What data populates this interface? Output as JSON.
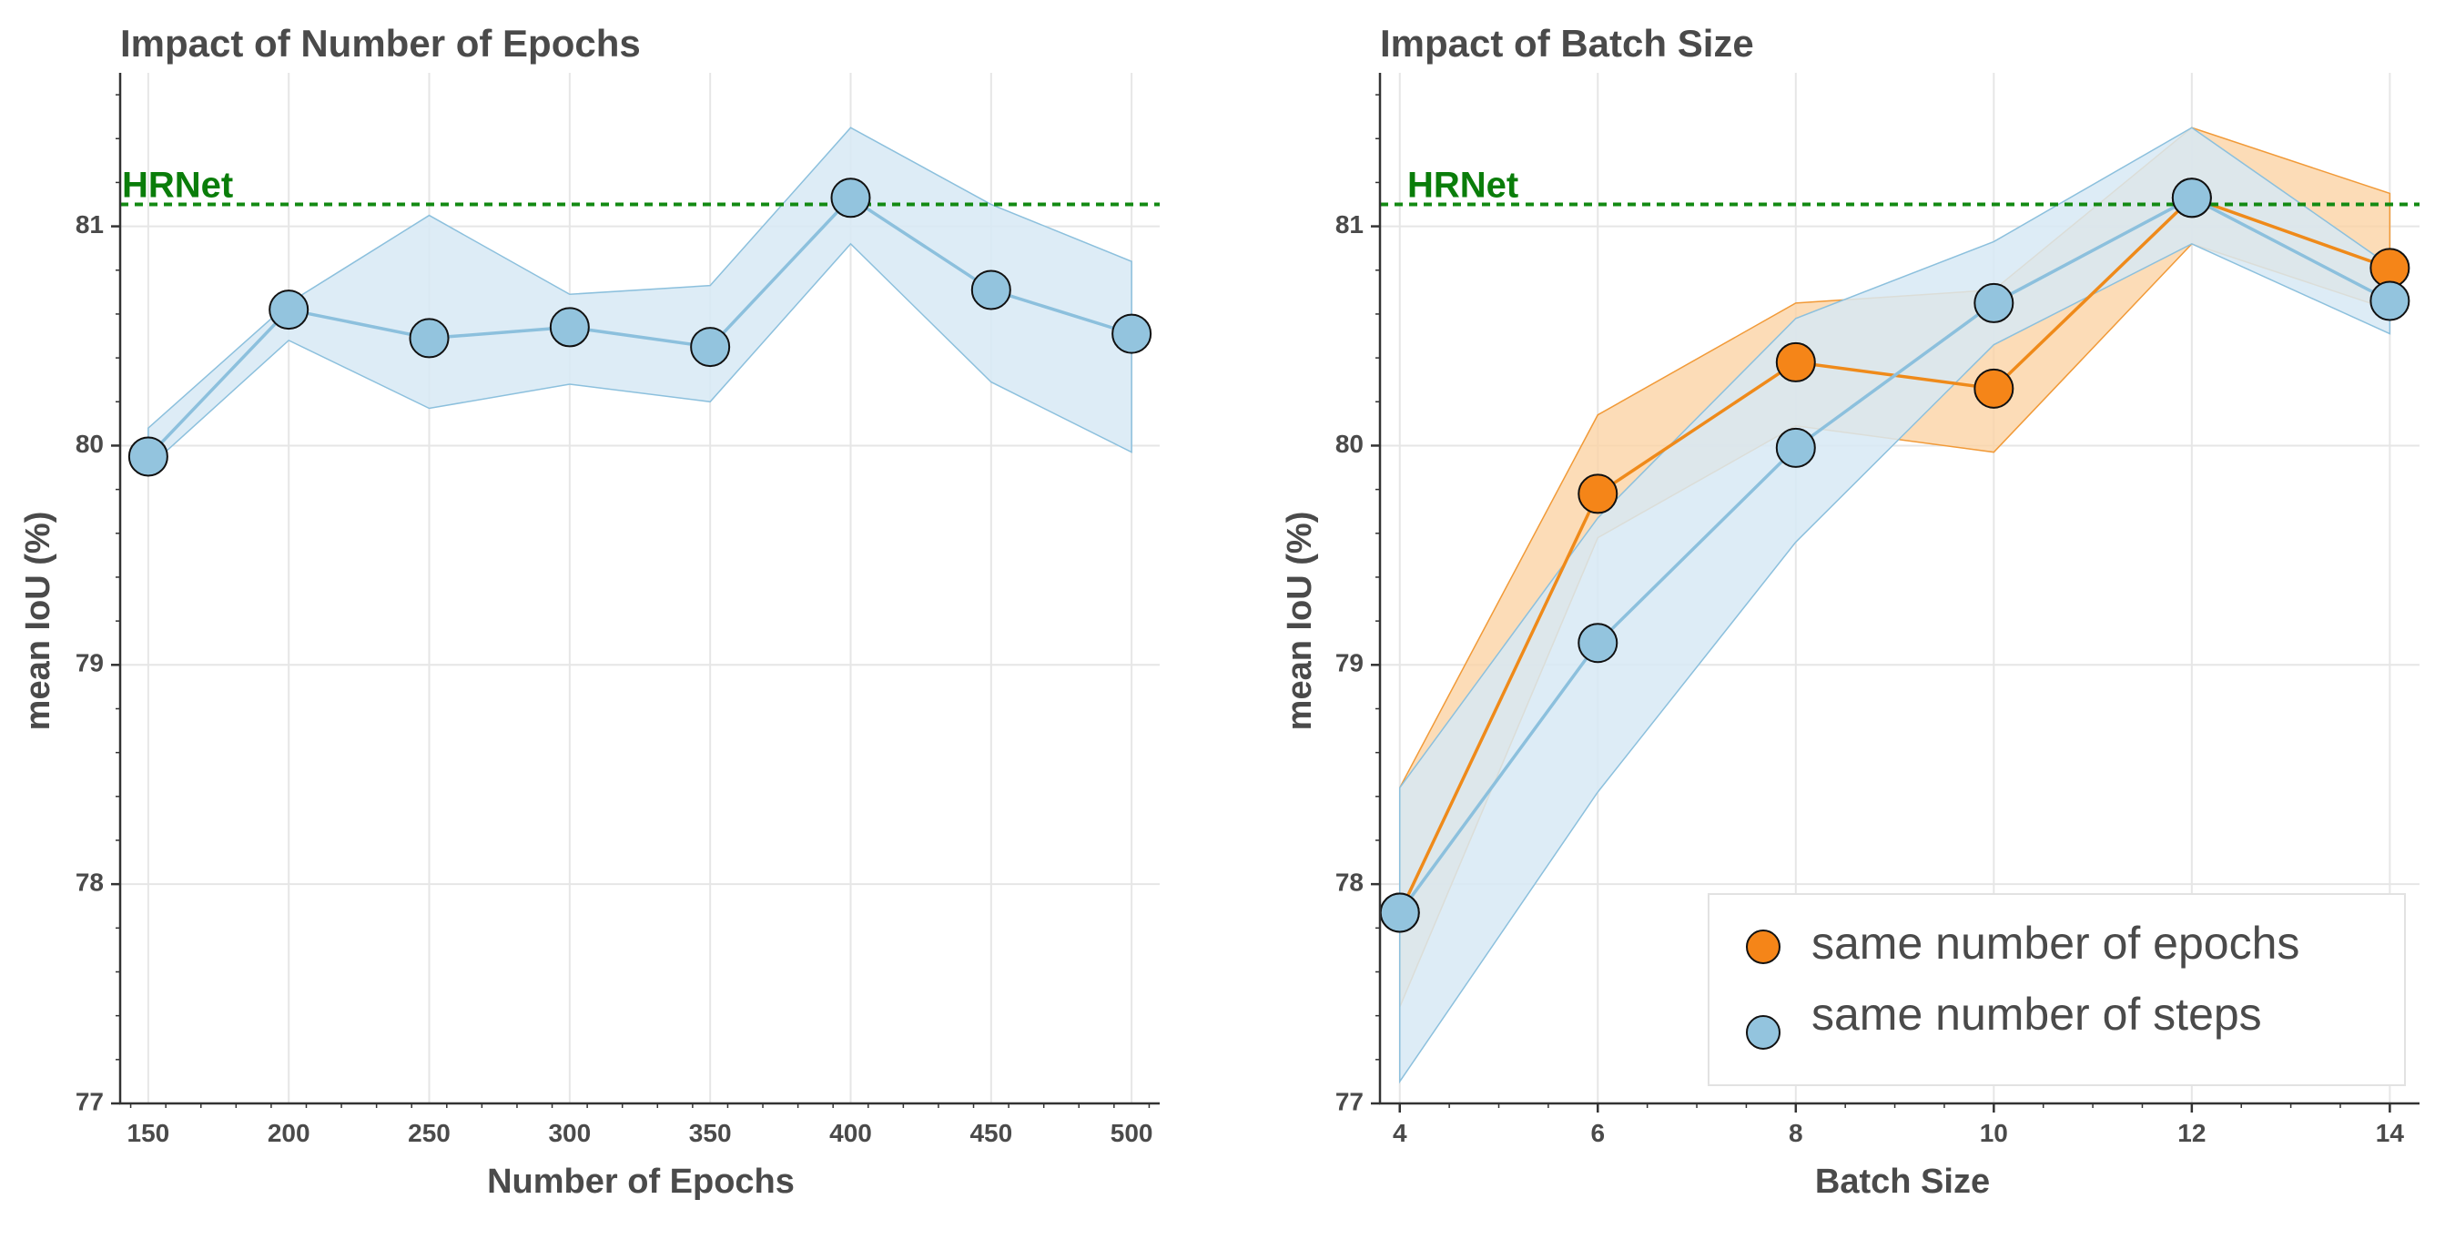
{
  "colors": {
    "blue": "#93c4de",
    "blue_line": "#8cc0dd",
    "blue_band": "#d7e9f4",
    "blue_band_edge": "#8cc0dd",
    "orange": "#f58518",
    "orange_line": "#ef8a1a",
    "orange_band": "#fbd2a3",
    "orange_band_edge": "#f19a38",
    "reference": "#138a13",
    "grid": "#e6e6e6",
    "axis": "#333333",
    "marker_edge": "#111111"
  },
  "chart_data": [
    {
      "type": "line",
      "title": "Impact of Number of Epochs",
      "xlabel": "Number of Epochs",
      "ylabel": "mean IoU (%)",
      "xlim": [
        140,
        510
      ],
      "ylim": [
        77,
        81.7
      ],
      "xticks": [
        150,
        200,
        250,
        300,
        350,
        400,
        450,
        500
      ],
      "xtick_labels": [
        "150",
        "200",
        "250",
        "300",
        "350",
        "400",
        "450",
        "500"
      ],
      "yticks": [
        77,
        78,
        79,
        80,
        81
      ],
      "ytick_labels": [
        "77",
        "78",
        "79",
        "80",
        "81"
      ],
      "grid": true,
      "reference_line": {
        "label": "HRNet",
        "y": 81.1
      },
      "series": [
        {
          "color": "blue",
          "x": [
            150,
            200,
            250,
            300,
            350,
            400,
            450,
            500
          ],
          "values": [
            79.95,
            80.62,
            80.49,
            80.54,
            80.45,
            81.13,
            80.71,
            80.51
          ],
          "lower": [
            79.9,
            80.48,
            80.17,
            80.28,
            80.2,
            80.92,
            80.29,
            79.97
          ],
          "upper": [
            80.08,
            80.65,
            81.05,
            80.69,
            80.73,
            81.45,
            81.1,
            80.84
          ]
        }
      ]
    },
    {
      "type": "line",
      "title": "Impact of Batch Size",
      "xlabel": "Batch Size",
      "ylabel": "mean IoU (%)",
      "xlim": [
        3.8,
        14.3
      ],
      "ylim": [
        77,
        81.7
      ],
      "xticks": [
        4,
        6,
        8,
        10,
        12,
        14
      ],
      "xtick_labels": [
        "4",
        "6",
        "8",
        "10",
        "12",
        "14"
      ],
      "yticks": [
        77,
        78,
        79,
        80,
        81
      ],
      "ytick_labels": [
        "77",
        "78",
        "79",
        "80",
        "81"
      ],
      "grid": true,
      "legend_position": "lower-right",
      "reference_line": {
        "label": "HRNet",
        "y": 81.1
      },
      "series": [
        {
          "name": "same number of epochs",
          "color": "orange",
          "x": [
            4,
            6,
            8,
            10,
            12,
            14
          ],
          "values": [
            77.87,
            79.78,
            80.38,
            80.26,
            81.13,
            80.81
          ],
          "lower": [
            77.44,
            79.58,
            80.09,
            79.97,
            80.92,
            80.62
          ],
          "upper": [
            78.44,
            80.14,
            80.65,
            80.71,
            81.45,
            81.15
          ]
        },
        {
          "name": "same number of steps",
          "color": "blue",
          "x": [
            4,
            6,
            8,
            10,
            12,
            14
          ],
          "values": [
            77.87,
            79.1,
            79.99,
            80.65,
            81.13,
            80.66
          ],
          "lower": [
            77.1,
            78.42,
            79.56,
            80.46,
            80.92,
            80.51
          ],
          "upper": [
            78.44,
            79.67,
            80.58,
            80.93,
            81.45,
            80.82
          ]
        }
      ]
    }
  ]
}
